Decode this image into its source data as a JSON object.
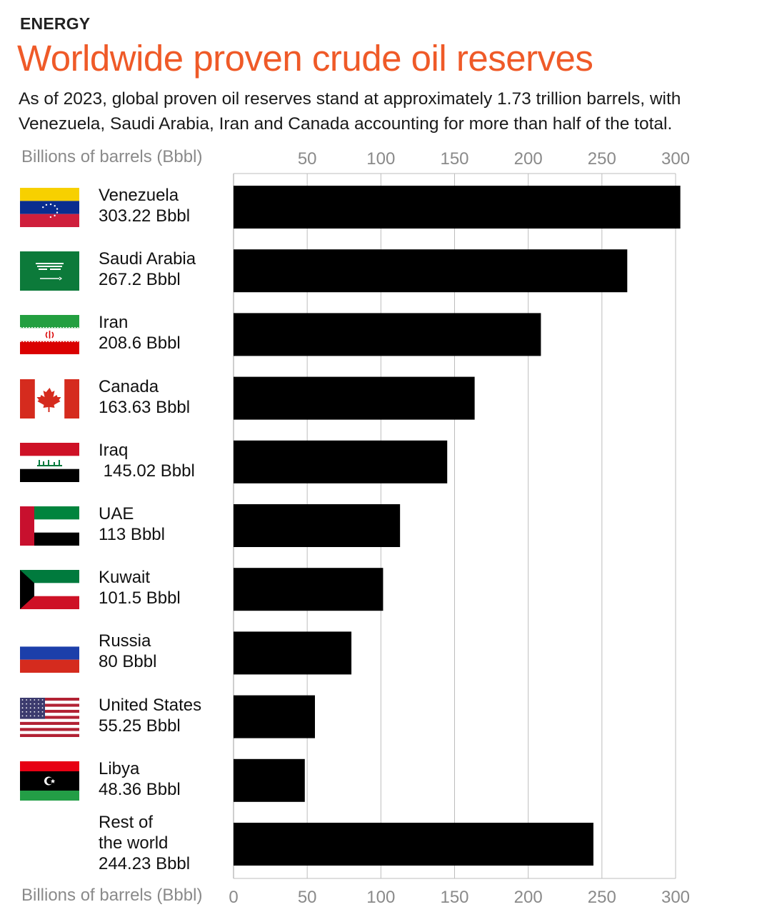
{
  "kicker": "ENERGY",
  "title": "Worldwide proven crude oil reserves",
  "subtitle": "As of 2023, global proven oil reserves stand at approximately 1.73 trillion barrels, with Venezuela, Saudi Arabia, Iran and Canada accounting for more than half of the total.",
  "colors": {
    "accent": "#ef5a28",
    "bar": "#000000",
    "grid": "#bdbdbd",
    "axis_text": "#8a8a8a"
  },
  "chart_data": {
    "type": "bar",
    "orientation": "horizontal",
    "xlabel": "Billions of barrels (Bbbl)",
    "xlim": [
      0,
      300
    ],
    "ticks_top": [
      50,
      100,
      150,
      200,
      250,
      300
    ],
    "ticks_bottom": [
      0,
      50,
      100,
      150,
      200,
      250,
      300
    ],
    "grid": true,
    "categories": [
      "Venezuela",
      "Saudi Arabia",
      "Iran",
      "Canada",
      "Iraq",
      "UAE",
      "Kuwait",
      "Russia",
      "United States",
      "Libya",
      "Rest of the world"
    ],
    "values": [
      303.22,
      267.2,
      208.6,
      163.63,
      145.02,
      113,
      101.5,
      80,
      55.25,
      48.36,
      244.23
    ],
    "labels": [
      [
        "Venezuela",
        "303.22 Bbbl"
      ],
      [
        "Saudi Arabia",
        "267.2 Bbbl"
      ],
      [
        "Iran",
        "208.6 Bbbl"
      ],
      [
        "Canada",
        "163.63 Bbbl"
      ],
      [
        "Iraq",
        " 145.02 Bbbl"
      ],
      [
        "UAE",
        "113 Bbbl"
      ],
      [
        "Kuwait",
        "101.5 Bbbl"
      ],
      [
        "Russia",
        "80 Bbbl"
      ],
      [
        "United States",
        "55.25 Bbbl"
      ],
      [
        "Libya",
        "48.36 Bbbl"
      ],
      [
        "Rest of",
        "the world",
        "244.23 Bbbl"
      ]
    ],
    "flags": [
      "venezuela-flag-icon",
      "saudi-arabia-flag-icon",
      "iran-flag-icon",
      "canada-flag-icon",
      "iraq-flag-icon",
      "uae-flag-icon",
      "kuwait-flag-icon",
      "russia-flag-icon",
      "united-states-flag-icon",
      "libya-flag-icon",
      ""
    ]
  }
}
